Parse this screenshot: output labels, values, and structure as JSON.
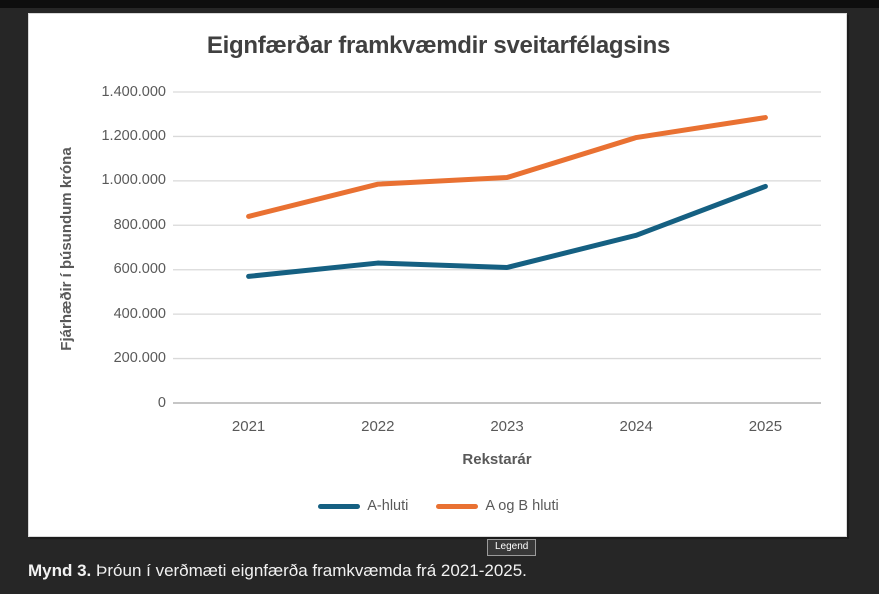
{
  "window": {
    "tooltip": "Legend",
    "caption_label": "Mynd 3.",
    "caption_text": "Þróun í verðmæti eignfærða framkvæmda frá 2021-2025."
  },
  "chart_data": {
    "type": "line",
    "title": "Eignfærðar framkvæmdir sveitarfélagsins",
    "xlabel": "Rekstarár",
    "ylabel": "Fjárhæðir í þúsundum króna",
    "categories": [
      "2021",
      "2022",
      "2023",
      "2024",
      "2025"
    ],
    "series": [
      {
        "name": "A-hluti",
        "color": "#156082",
        "values": [
          570000,
          630000,
          610000,
          755000,
          975000
        ]
      },
      {
        "name": "A og B hluti",
        "color": "#E97132",
        "values": [
          840000,
          985000,
          1015000,
          1195000,
          1285000
        ]
      }
    ],
    "ylim": [
      0,
      1400000
    ],
    "ytick_step": 200000,
    "ytick_labels": [
      "0",
      "200.000",
      "400.000",
      "600.000",
      "800.000",
      "1.000.000",
      "1.200.000",
      "1.400.000"
    ],
    "grid": true,
    "legend_position": "bottom",
    "colors": {
      "gridline": "#d9d9d9",
      "zero_line": "#c6c6c6",
      "axis_text": "#595959",
      "title_text": "#404040",
      "card_bg": "#ffffff",
      "page_bg": "#262626"
    }
  }
}
